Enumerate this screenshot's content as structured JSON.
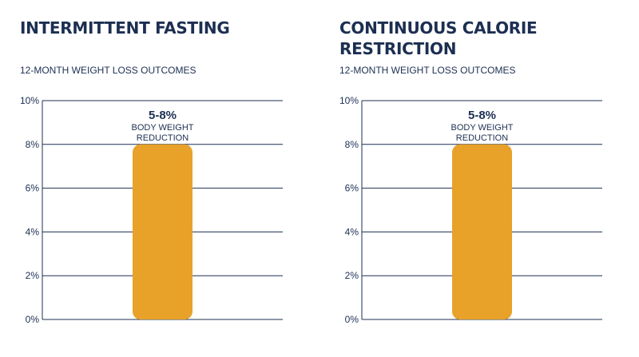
{
  "chart_data": [
    {
      "type": "bar",
      "title": "INTERMITTENT FASTING",
      "subtitle": "12-MONTH WEIGHT LOSS OUTCOMES",
      "categories": [
        "Intermittent fasting"
      ],
      "values": [
        8
      ],
      "value_range": [
        5,
        8
      ],
      "ylim": [
        0,
        10
      ],
      "yticks": [
        "0%",
        "2%",
        "4%",
        "6%",
        "8%",
        "10%"
      ],
      "ytick_values": [
        0,
        2,
        4,
        6,
        8,
        10
      ],
      "grid": true,
      "bar_color": "#e8a129",
      "annotation": {
        "value": "5-8%",
        "line1": "BODY WEIGHT",
        "line2": "REDUCTION"
      }
    },
    {
      "type": "bar",
      "title": "CONTINUOUS CALORIE RESTRICTION",
      "subtitle": "12-MONTH WEIGHT LOSS OUTCOMES",
      "categories": [
        "Continuous calorie restriction"
      ],
      "values": [
        8
      ],
      "value_range": [
        5,
        8
      ],
      "ylim": [
        0,
        10
      ],
      "yticks": [
        "0%",
        "2%",
        "4%",
        "6%",
        "8%",
        "10%"
      ],
      "ytick_values": [
        0,
        2,
        4,
        6,
        8,
        10
      ],
      "grid": true,
      "bar_color": "#e8a129",
      "annotation": {
        "value": "5-8%",
        "line1": "BODY WEIGHT",
        "line2": "REDUCTION"
      }
    }
  ],
  "colors": {
    "text": "#1c2f52",
    "grid": "#1c2f52",
    "bar": "#e8a129"
  }
}
